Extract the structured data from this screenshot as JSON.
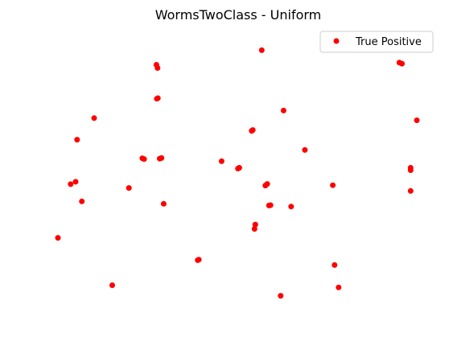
{
  "chart_data": {
    "type": "scatter",
    "title": "WormsTwoClass - Uniform",
    "xlabel": "",
    "ylabel": "",
    "xlim": [
      0,
      100
    ],
    "ylim": [
      0,
      100
    ],
    "grid": false,
    "axes_visible": false,
    "legend_position": "top-right",
    "series": [
      {
        "name": "True Positive",
        "color": "#ff0000",
        "marker": "circle",
        "points": [
          [
            56.3,
            96.0
          ],
          [
            27.2,
            90.6
          ],
          [
            27.5,
            89.4
          ],
          [
            94.3,
            91.4
          ],
          [
            95.0,
            91.0
          ],
          [
            27.3,
            78.0
          ],
          [
            27.6,
            78.2
          ],
          [
            62.3,
            73.6
          ],
          [
            10.0,
            70.8
          ],
          [
            99.1,
            70.0
          ],
          [
            53.5,
            66.1
          ],
          [
            53.8,
            66.4
          ],
          [
            5.3,
            62.8
          ],
          [
            68.2,
            59.0
          ],
          [
            23.3,
            55.9
          ],
          [
            23.8,
            55.6
          ],
          [
            28.1,
            55.8
          ],
          [
            28.6,
            56.0
          ],
          [
            45.2,
            54.8
          ],
          [
            49.7,
            52.1
          ],
          [
            50.1,
            52.4
          ],
          [
            97.4,
            52.4
          ],
          [
            97.4,
            51.5
          ],
          [
            4.9,
            47.2
          ],
          [
            3.5,
            46.3
          ],
          [
            19.6,
            44.9
          ],
          [
            57.3,
            45.8
          ],
          [
            57.8,
            46.4
          ],
          [
            75.9,
            45.9
          ],
          [
            97.4,
            43.8
          ],
          [
            6.6,
            39.9
          ],
          [
            29.2,
            39.0
          ],
          [
            58.3,
            38.4
          ],
          [
            58.7,
            38.5
          ],
          [
            64.4,
            38.0
          ],
          [
            54.5,
            31.3
          ],
          [
            54.3,
            29.7
          ],
          [
            0.0,
            26.4
          ],
          [
            38.6,
            18.1
          ],
          [
            38.9,
            18.3
          ],
          [
            76.4,
            16.3
          ],
          [
            15.0,
            8.8
          ],
          [
            61.5,
            4.9
          ],
          [
            77.5,
            8.0
          ]
        ]
      }
    ]
  }
}
